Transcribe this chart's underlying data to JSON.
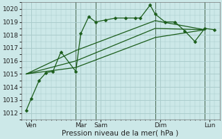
{
  "background_color": "#cce8e8",
  "grid_color": "#aacccc",
  "line_color": "#1a5c1a",
  "title": "Pression niveau de la mer( hPa )",
  "ylim": [
    1011.5,
    1020.5
  ],
  "yticks": [
    1012,
    1013,
    1014,
    1015,
    1016,
    1017,
    1018,
    1019,
    1020
  ],
  "xlim": [
    0,
    20
  ],
  "xtick_labels": [
    "Ven",
    "Mar",
    "Sam",
    "Dim",
    "Lun"
  ],
  "xtick_positions": [
    1,
    6,
    8,
    14,
    19
  ],
  "vline_positions": [
    5.5,
    7.5,
    13.5,
    18.5
  ],
  "series_main": {
    "x": [
      0.5,
      1.0,
      1.8,
      2.5,
      3.2,
      4.0,
      5.5,
      6.0,
      6.8,
      7.5,
      8.5,
      9.5,
      10.5,
      11.5,
      12.0,
      13.0,
      13.5,
      14.5,
      15.5,
      16.5,
      17.5,
      18.5,
      19.5
    ],
    "y": [
      1012.2,
      1013.1,
      1014.5,
      1015.1,
      1015.2,
      1016.7,
      1015.2,
      1018.1,
      1019.4,
      1019.0,
      1019.15,
      1019.3,
      1019.3,
      1019.3,
      1019.3,
      1020.3,
      1019.6,
      1019.0,
      1019.0,
      1018.3,
      1017.5,
      1018.5,
      1018.4
    ]
  },
  "series_bands": [
    {
      "x": [
        0.5,
        5.5,
        13.5,
        18.5
      ],
      "y": [
        1015.0,
        1015.5,
        1017.8,
        1018.4
      ]
    },
    {
      "x": [
        0.5,
        5.5,
        13.5,
        18.5
      ],
      "y": [
        1015.0,
        1016.0,
        1018.5,
        1018.4
      ]
    },
    {
      "x": [
        0.5,
        5.5,
        13.5,
        18.5
      ],
      "y": [
        1015.0,
        1016.8,
        1019.1,
        1018.4
      ]
    }
  ],
  "tick_fontsize": 6.5,
  "label_fontsize": 7.5
}
